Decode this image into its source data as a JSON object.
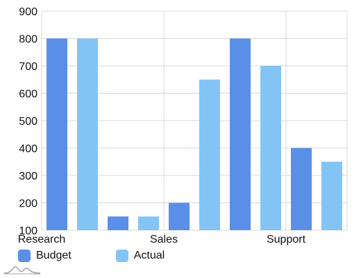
{
  "chart_data": {
    "type": "bar",
    "categories": [
      "Research",
      "",
      "",
      "",
      "Sales",
      "",
      "",
      "Support"
    ],
    "tick_labels_x": [
      "Research",
      "Sales",
      "Support"
    ],
    "series": [
      {
        "name": "Budget",
        "color": "#5a8fe8"
      },
      {
        "name": "Actual",
        "color": "#84c4f5"
      }
    ],
    "bars": [
      {
        "series": 0,
        "value": 800
      },
      {
        "series": 1,
        "value": 800
      },
      {
        "series": 0,
        "value": 150
      },
      {
        "series": 1,
        "value": 150
      },
      {
        "series": 0,
        "value": 200
      },
      {
        "series": 1,
        "value": 650
      },
      {
        "series": 0,
        "value": 800
      },
      {
        "series": 1,
        "value": 700
      },
      {
        "series": 0,
        "value": 400
      },
      {
        "series": 1,
        "value": 350
      }
    ],
    "ylim": [
      100,
      900
    ],
    "yticks": [
      "900",
      "800",
      "700",
      "600",
      "500",
      "400",
      "300",
      "200",
      "100"
    ],
    "grid": true,
    "legend": "bottom-left",
    "title": "",
    "xlabel": "",
    "ylabel": ""
  }
}
